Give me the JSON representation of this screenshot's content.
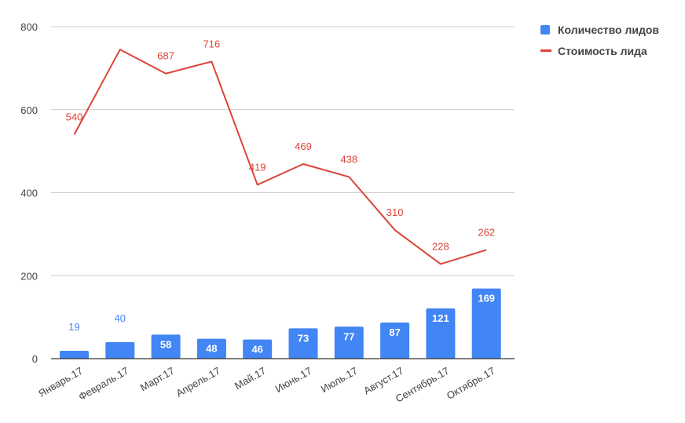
{
  "chart_data": {
    "type": "bar",
    "categories": [
      "Январь.17",
      "Февраль.17",
      "Март.17",
      "Апрель.17",
      "Май.17",
      "Июнь.17",
      "Июль.17",
      "Август.17",
      "Сентябрь.17",
      "Октябрь.17"
    ],
    "series": [
      {
        "name": "Количество лидов",
        "type": "bar",
        "color": "#4285f4",
        "values": [
          19,
          40,
          58,
          48,
          46,
          73,
          77,
          87,
          121,
          169
        ],
        "labels": [
          "19",
          "40",
          "58",
          "48",
          "46",
          "73",
          "77",
          "87",
          "121",
          "169"
        ]
      },
      {
        "name": "Стоимость лида",
        "type": "line",
        "color": "#db4437",
        "values": [
          540,
          745,
          687,
          716,
          419,
          469,
          438,
          310,
          228,
          262
        ],
        "labels": [
          "540",
          "",
          "687",
          "716",
          "419",
          "469",
          "438",
          "310",
          "228",
          "262"
        ]
      }
    ],
    "ylim": [
      0,
      800
    ],
    "yticks": [
      "0",
      "200",
      "400",
      "600",
      "800"
    ],
    "grid": true,
    "legend_position": "top-right"
  }
}
